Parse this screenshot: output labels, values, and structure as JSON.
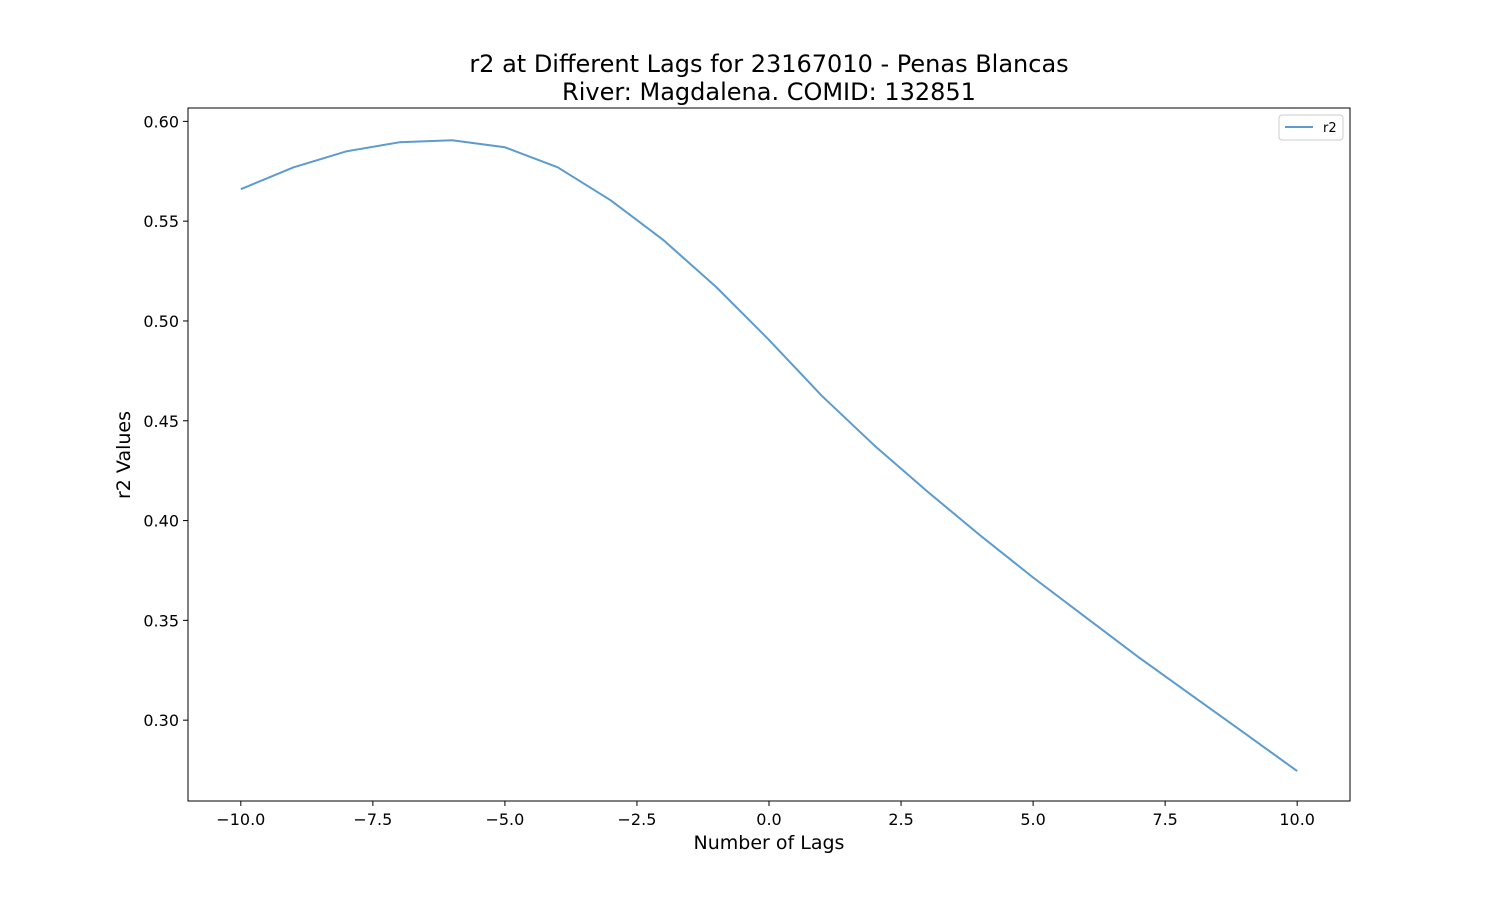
{
  "chart_data": {
    "type": "line",
    "title": "r2 at Different Lags for 23167010 - Penas Blancas",
    "subtitle": "River: Magdalena. COMID: 132851",
    "xlabel": "Number of Lags",
    "ylabel": "r2 Values",
    "xlim": [
      -11.0,
      11.0
    ],
    "ylim": [
      0.2595,
      0.6067
    ],
    "x_ticks": [
      -10.0,
      -7.5,
      -5.0,
      -2.5,
      0.0,
      2.5,
      5.0,
      7.5,
      10.0
    ],
    "x_tick_labels": [
      "−10.0",
      "−7.5",
      "−5.0",
      "−2.5",
      "0.0",
      "2.5",
      "5.0",
      "7.5",
      "10.0"
    ],
    "y_ticks": [
      0.3,
      0.35,
      0.4,
      0.45,
      0.5,
      0.55,
      0.6
    ],
    "y_tick_labels": [
      "0.30",
      "0.35",
      "0.40",
      "0.45",
      "0.50",
      "0.55",
      "0.60"
    ],
    "grid": false,
    "legend_position": "top-right",
    "series": [
      {
        "name": "r2",
        "color": "#5b9bd0",
        "x": [
          -10,
          -9,
          -8,
          -7,
          -6,
          -5,
          -4,
          -3,
          -2,
          -1,
          0,
          1,
          2,
          3,
          4,
          5,
          6,
          7,
          8,
          9,
          10
        ],
        "values": [
          0.566,
          0.577,
          0.585,
          0.5895,
          0.5905,
          0.587,
          0.577,
          0.5605,
          0.5405,
          0.517,
          0.4905,
          0.4625,
          0.4375,
          0.4145,
          0.3925,
          0.3715,
          0.3515,
          0.3315,
          0.3125,
          0.2935,
          0.2745
        ]
      }
    ]
  }
}
